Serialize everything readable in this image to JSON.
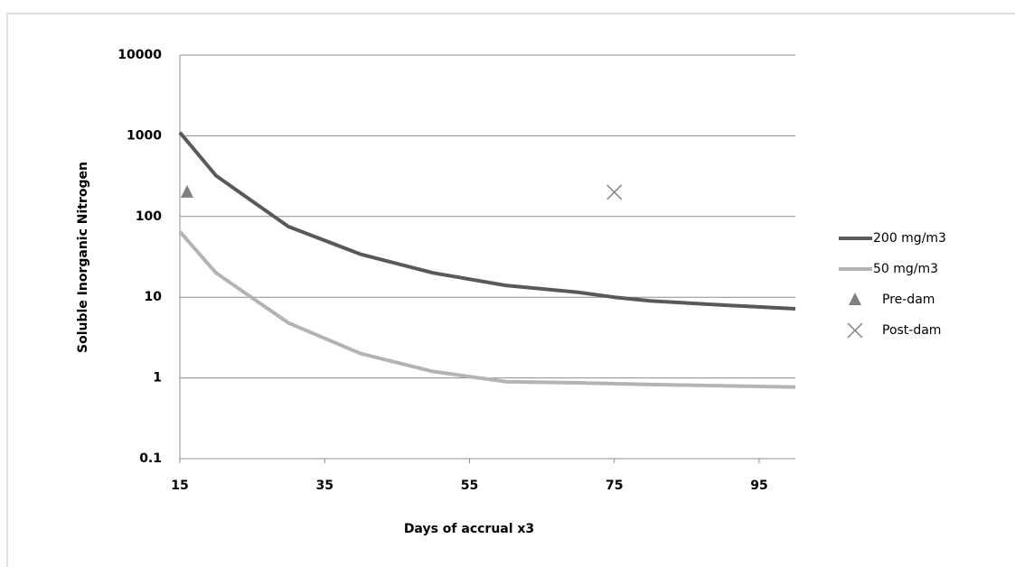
{
  "chart_data": {
    "type": "line",
    "xlabel": "Days of accrual x3",
    "ylabel": "Soluble Inorganic Nitrogen",
    "xlim": [
      15,
      100
    ],
    "xticks": [
      15,
      35,
      55,
      75,
      95
    ],
    "ylim": [
      0.1,
      10000
    ],
    "yticks": [
      0.1,
      1,
      10,
      100,
      1000,
      10000
    ],
    "ylog": true,
    "grid": true,
    "legend": "right",
    "series": [
      {
        "name": "200 mg/m3",
        "color": "#595959",
        "marker": "none",
        "x": [
          15,
          20,
          30,
          40,
          50,
          60,
          70,
          75,
          80,
          90,
          100
        ],
        "values": [
          1100,
          320,
          75,
          34,
          20,
          14,
          11.5,
          10,
          9,
          8,
          7.2
        ]
      },
      {
        "name": "50 mg/m3",
        "color": "#b3b3b3",
        "marker": "none",
        "x": [
          15,
          20,
          30,
          40,
          50,
          60,
          70,
          80,
          90,
          100
        ],
        "values": [
          65,
          20,
          4.8,
          2,
          1.2,
          0.9,
          0.87,
          0.83,
          0.8,
          0.77
        ]
      },
      {
        "name": "Pre-dam",
        "color": "#808080",
        "marker": "triangle",
        "x": [
          16
        ],
        "values": [
          200
        ]
      },
      {
        "name": "Post-dam",
        "color": "#808080",
        "marker": "cross",
        "x": [
          75
        ],
        "values": [
          200
        ]
      }
    ]
  }
}
